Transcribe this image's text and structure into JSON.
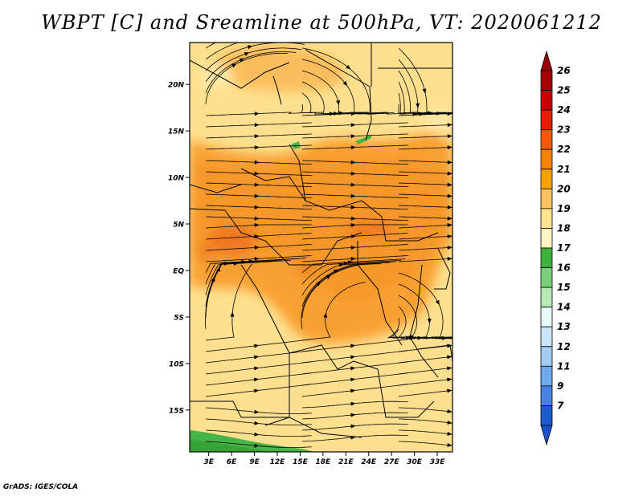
{
  "title": "WBPT [C] and Sreamline at 500hPa, VT: 2020061212",
  "credit": "GrADS: IGES/COLA",
  "map": {
    "lat_ticks": [
      {
        "label": "20N",
        "value": 20
      },
      {
        "label": "15N",
        "value": 15
      },
      {
        "label": "10N",
        "value": 10
      },
      {
        "label": "5N",
        "value": 5
      },
      {
        "label": "EQ",
        "value": 0
      },
      {
        "label": "5S",
        "value": -5
      },
      {
        "label": "10S",
        "value": -10
      },
      {
        "label": "15S",
        "value": -15
      }
    ],
    "lon_ticks": [
      {
        "label": "3E",
        "value": 3
      },
      {
        "label": "6E",
        "value": 6
      },
      {
        "label": "9E",
        "value": 9
      },
      {
        "label": "12E",
        "value": 12
      },
      {
        "label": "15E",
        "value": 15
      },
      {
        "label": "18E",
        "value": 18
      },
      {
        "label": "21E",
        "value": 21
      },
      {
        "label": "24E",
        "value": 24
      },
      {
        "label": "27E",
        "value": 27
      },
      {
        "label": "30E",
        "value": 30
      },
      {
        "label": "33E",
        "value": 33
      }
    ],
    "lon_range": [
      0.5,
      35
    ],
    "lat_range": [
      -19.5,
      24.5
    ]
  },
  "colorbar": {
    "levels": [
      "26",
      "25",
      "24",
      "23",
      "22",
      "21",
      "20",
      "19",
      "18",
      "17",
      "16",
      "15",
      "14",
      "13",
      "12",
      "11",
      "9",
      "7"
    ],
    "colors": [
      "#a50000",
      "#c80000",
      "#e61e00",
      "#f55a00",
      "#fa8200",
      "#fca000",
      "#fdc35a",
      "#ffe38c",
      "#fff5c0",
      "#3cb43c",
      "#78d278",
      "#b4ebb4",
      "#e6fafa",
      "#c8e6fa",
      "#a0cdf5",
      "#6eaaf0",
      "#4682e6",
      "#1e5ad2"
    ],
    "top_color": "#960000",
    "bottom_color": "#1e50c8"
  }
}
